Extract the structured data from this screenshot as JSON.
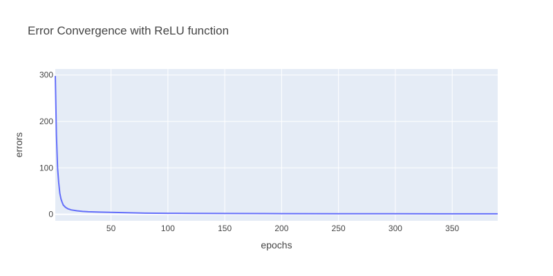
{
  "chart_data": {
    "type": "line",
    "title": "Error Convergence with ReLU function",
    "xlabel": "epochs",
    "ylabel": "errors",
    "xlim": [
      1,
      390
    ],
    "ylim": [
      -14,
      313
    ],
    "x_ticks": [
      50,
      100,
      150,
      200,
      250,
      300,
      350
    ],
    "y_ticks": [
      0,
      100,
      200,
      300
    ],
    "grid": true,
    "legend": "none",
    "colors": {
      "line": "#636efa",
      "plot_bg": "#e5ecf6",
      "grid": "#ffffff",
      "text": "#444444"
    },
    "series": [
      {
        "x": [
          1,
          2,
          3,
          4,
          5,
          6,
          7,
          8,
          10,
          12,
          15,
          20,
          25,
          30,
          40,
          50,
          60,
          70,
          80,
          100,
          120,
          150,
          200,
          250,
          300,
          350,
          390
        ],
        "y": [
          298,
          170,
          100,
          68,
          45,
          33,
          26,
          20,
          15,
          12,
          9.5,
          7.5,
          6.2,
          5.5,
          4.8,
          4.2,
          3.6,
          3.0,
          2.5,
          2.2,
          2.0,
          1.8,
          1.5,
          1.3,
          1.2,
          1.1,
          1.0
        ]
      }
    ]
  }
}
